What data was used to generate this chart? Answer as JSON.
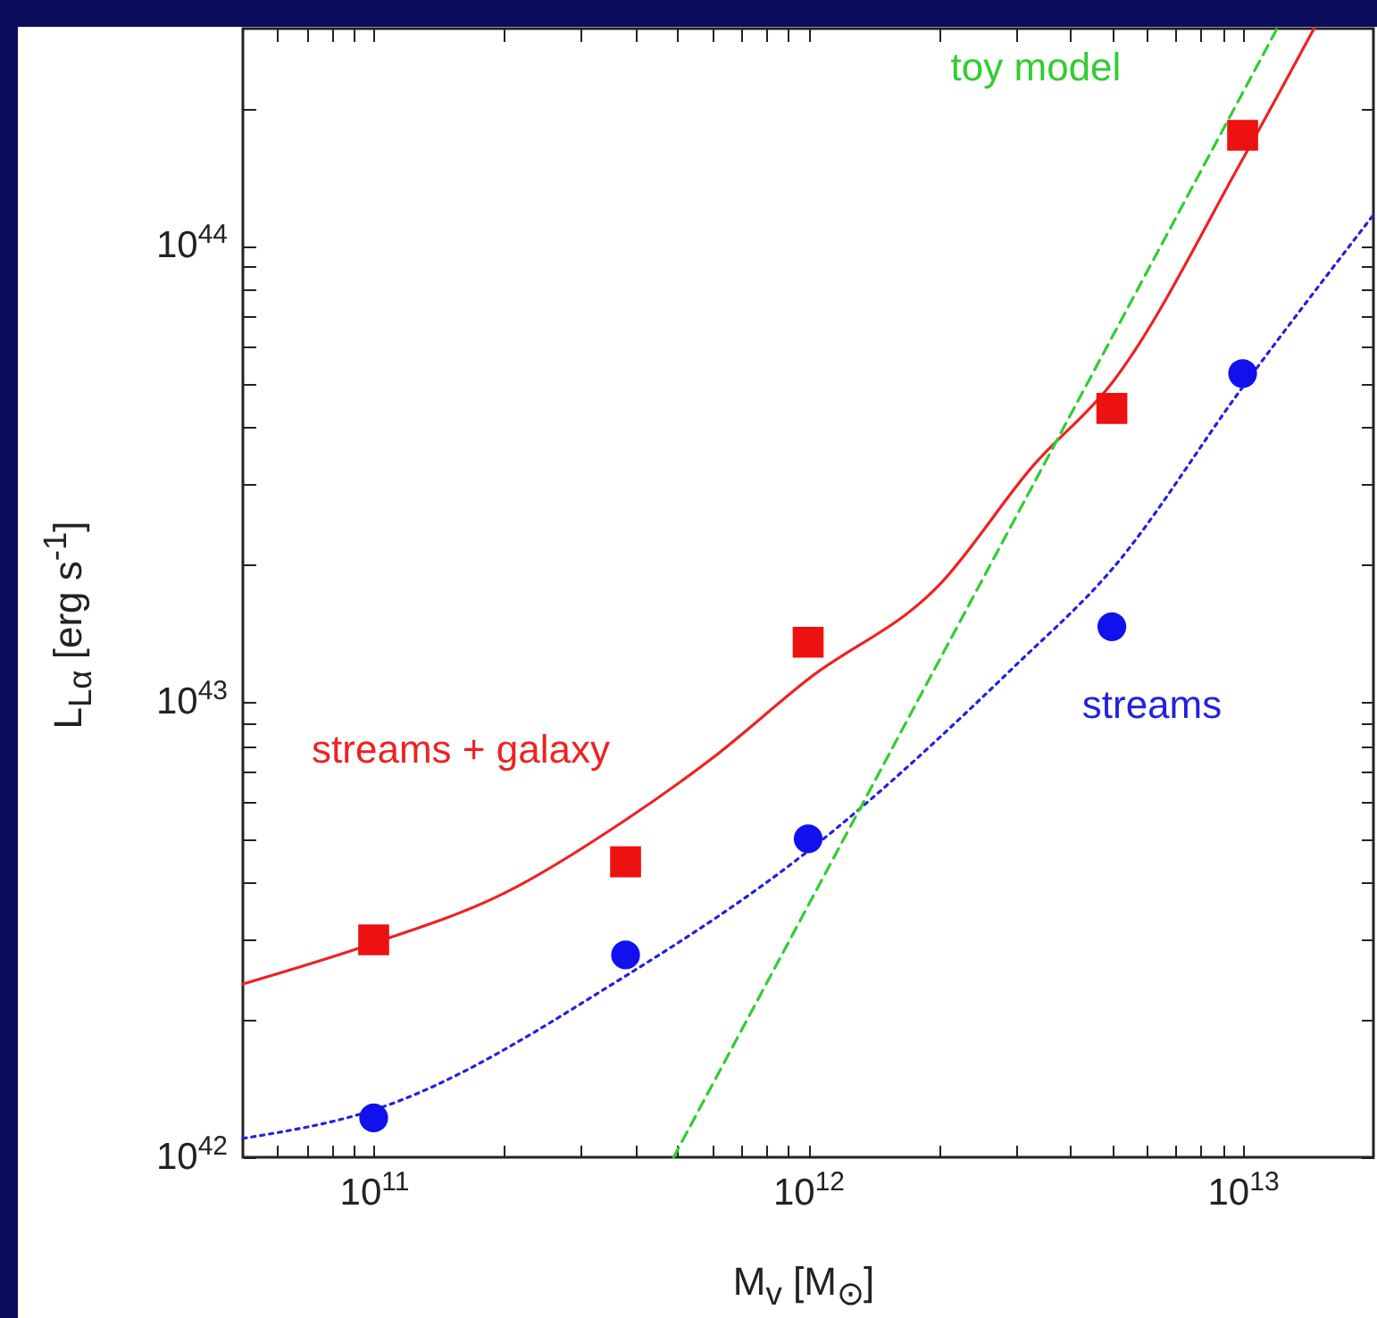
{
  "chart_data": {
    "type": "scatter",
    "log": "xy",
    "xlabel": "M$_{v}$ [M$_{⊙}$]",
    "ylabel": "L$_{Lα}$ [erg s$^{-1}$]",
    "xlim": [
      50000000000.0,
      20000000000000.0
    ],
    "ylim": [
      1e+42,
      3e+44
    ],
    "xticks": [
      {
        "value": 60000000000.0,
        "label": null
      },
      {
        "value": 70000000000.0,
        "label": null
      },
      {
        "value": 80000000000.0,
        "label": null
      },
      {
        "value": 90000000000.0,
        "label": null
      },
      {
        "value": 100000000000.0,
        "label": "10$^{11}$"
      },
      {
        "value": 200000000000.0,
        "label": null
      },
      {
        "value": 300000000000.0,
        "label": null
      },
      {
        "value": 400000000000.0,
        "label": null
      },
      {
        "value": 500000000000.0,
        "label": null
      },
      {
        "value": 600000000000.0,
        "label": null
      },
      {
        "value": 700000000000.0,
        "label": null
      },
      {
        "value": 800000000000.0,
        "label": null
      },
      {
        "value": 900000000000.0,
        "label": null
      },
      {
        "value": 1000000000000.0,
        "label": "10$^{12}$"
      },
      {
        "value": 2000000000000.0,
        "label": null
      },
      {
        "value": 3000000000000.0,
        "label": null
      },
      {
        "value": 4000000000000.0,
        "label": null
      },
      {
        "value": 5000000000000.0,
        "label": null
      },
      {
        "value": 6000000000000.0,
        "label": null
      },
      {
        "value": 7000000000000.0,
        "label": null
      },
      {
        "value": 8000000000000.0,
        "label": null
      },
      {
        "value": 9000000000000.0,
        "label": null
      },
      {
        "value": 10000000000000.0,
        "label": "10$^{13}$"
      }
    ],
    "yticks": [
      {
        "value": 1e+42,
        "label": "10$^{42}$"
      },
      {
        "value": 2e+42,
        "label": null
      },
      {
        "value": 3e+42,
        "label": null
      },
      {
        "value": 4e+42,
        "label": null
      },
      {
        "value": 5e+42,
        "label": null
      },
      {
        "value": 6e+42,
        "label": null
      },
      {
        "value": 7e+42,
        "label": null
      },
      {
        "value": 8e+42,
        "label": null
      },
      {
        "value": 9e+42,
        "label": null
      },
      {
        "value": 1e+43,
        "label": "10$^{43}$"
      },
      {
        "value": 2e+43,
        "label": null
      },
      {
        "value": 3e+43,
        "label": null
      },
      {
        "value": 4e+43,
        "label": null
      },
      {
        "value": 5e+43,
        "label": null
      },
      {
        "value": 6e+43,
        "label": null
      },
      {
        "value": 7e+43,
        "label": null
      },
      {
        "value": 8e+43,
        "label": null
      },
      {
        "value": 9e+43,
        "label": null
      },
      {
        "value": 1e+44,
        "label": "10$^{44}$"
      },
      {
        "value": 2e+44,
        "label": null
      }
    ],
    "series": [
      {
        "type": "line",
        "color": "#ee2222",
        "line_style": "solid",
        "marker": "none",
        "x": [
          50000000000.0,
          100000000000.0,
          200000000000.0,
          380000000000.0,
          600000000000.0,
          1000000000000.0,
          2000000000000.0,
          3300000000000.0,
          5000000000000.0,
          10000000000000.0,
          14600000000000.0
        ],
        "values": [
          2.4e+42,
          2.95e+42,
          3.8e+42,
          5.5e+42,
          7.5e+42,
          1.12e+43,
          1.8e+43,
          3.3e+43,
          5e+43,
          1.55e+44,
          3e+44
        ]
      },
      {
        "color": "#ee1111",
        "marker": "square",
        "x": [
          100000000000.0,
          380000000000.0,
          1000000000000.0,
          5000000000000.0,
          10000000000000.0
        ],
        "values": [
          3e+42,
          4.45e+42,
          1.35e+43,
          4.4e+43,
          1.75e+44
        ]
      },
      {
        "type": "line",
        "color": "#2222dd",
        "line_style": "dotted",
        "marker": "none",
        "x": [
          50000000000.0,
          100000000000.0,
          380000000000.0,
          1000000000000.0,
          3000000000000.0,
          5000000000000.0,
          10000000000000.0,
          20000000000000.0
        ],
        "values": [
          1.1e+42,
          1.27e+42,
          2.5e+42,
          4.7e+42,
          1.2e+43,
          1.95e+43,
          4.9e+43,
          1.17e+44
        ]
      },
      {
        "color": "#1111ee",
        "marker": "circle",
        "x": [
          100000000000.0,
          380000000000.0,
          1000000000000.0,
          5000000000000.0,
          10000000000000.0
        ],
        "values": [
          1.22e+42,
          2.78e+42,
          5e+42,
          1.46e+43,
          5.25e+43
        ]
      },
      {
        "type": "line",
        "color": "#33cc33",
        "line_style": "dashed",
        "marker": "none",
        "x": [
          490000000000.0,
          12000000000000.0
        ],
        "values": [
          1e+42,
          3e+44
        ]
      }
    ],
    "annotations": [
      "streams + galaxy",
      "streams",
      "toy model"
    ]
  }
}
